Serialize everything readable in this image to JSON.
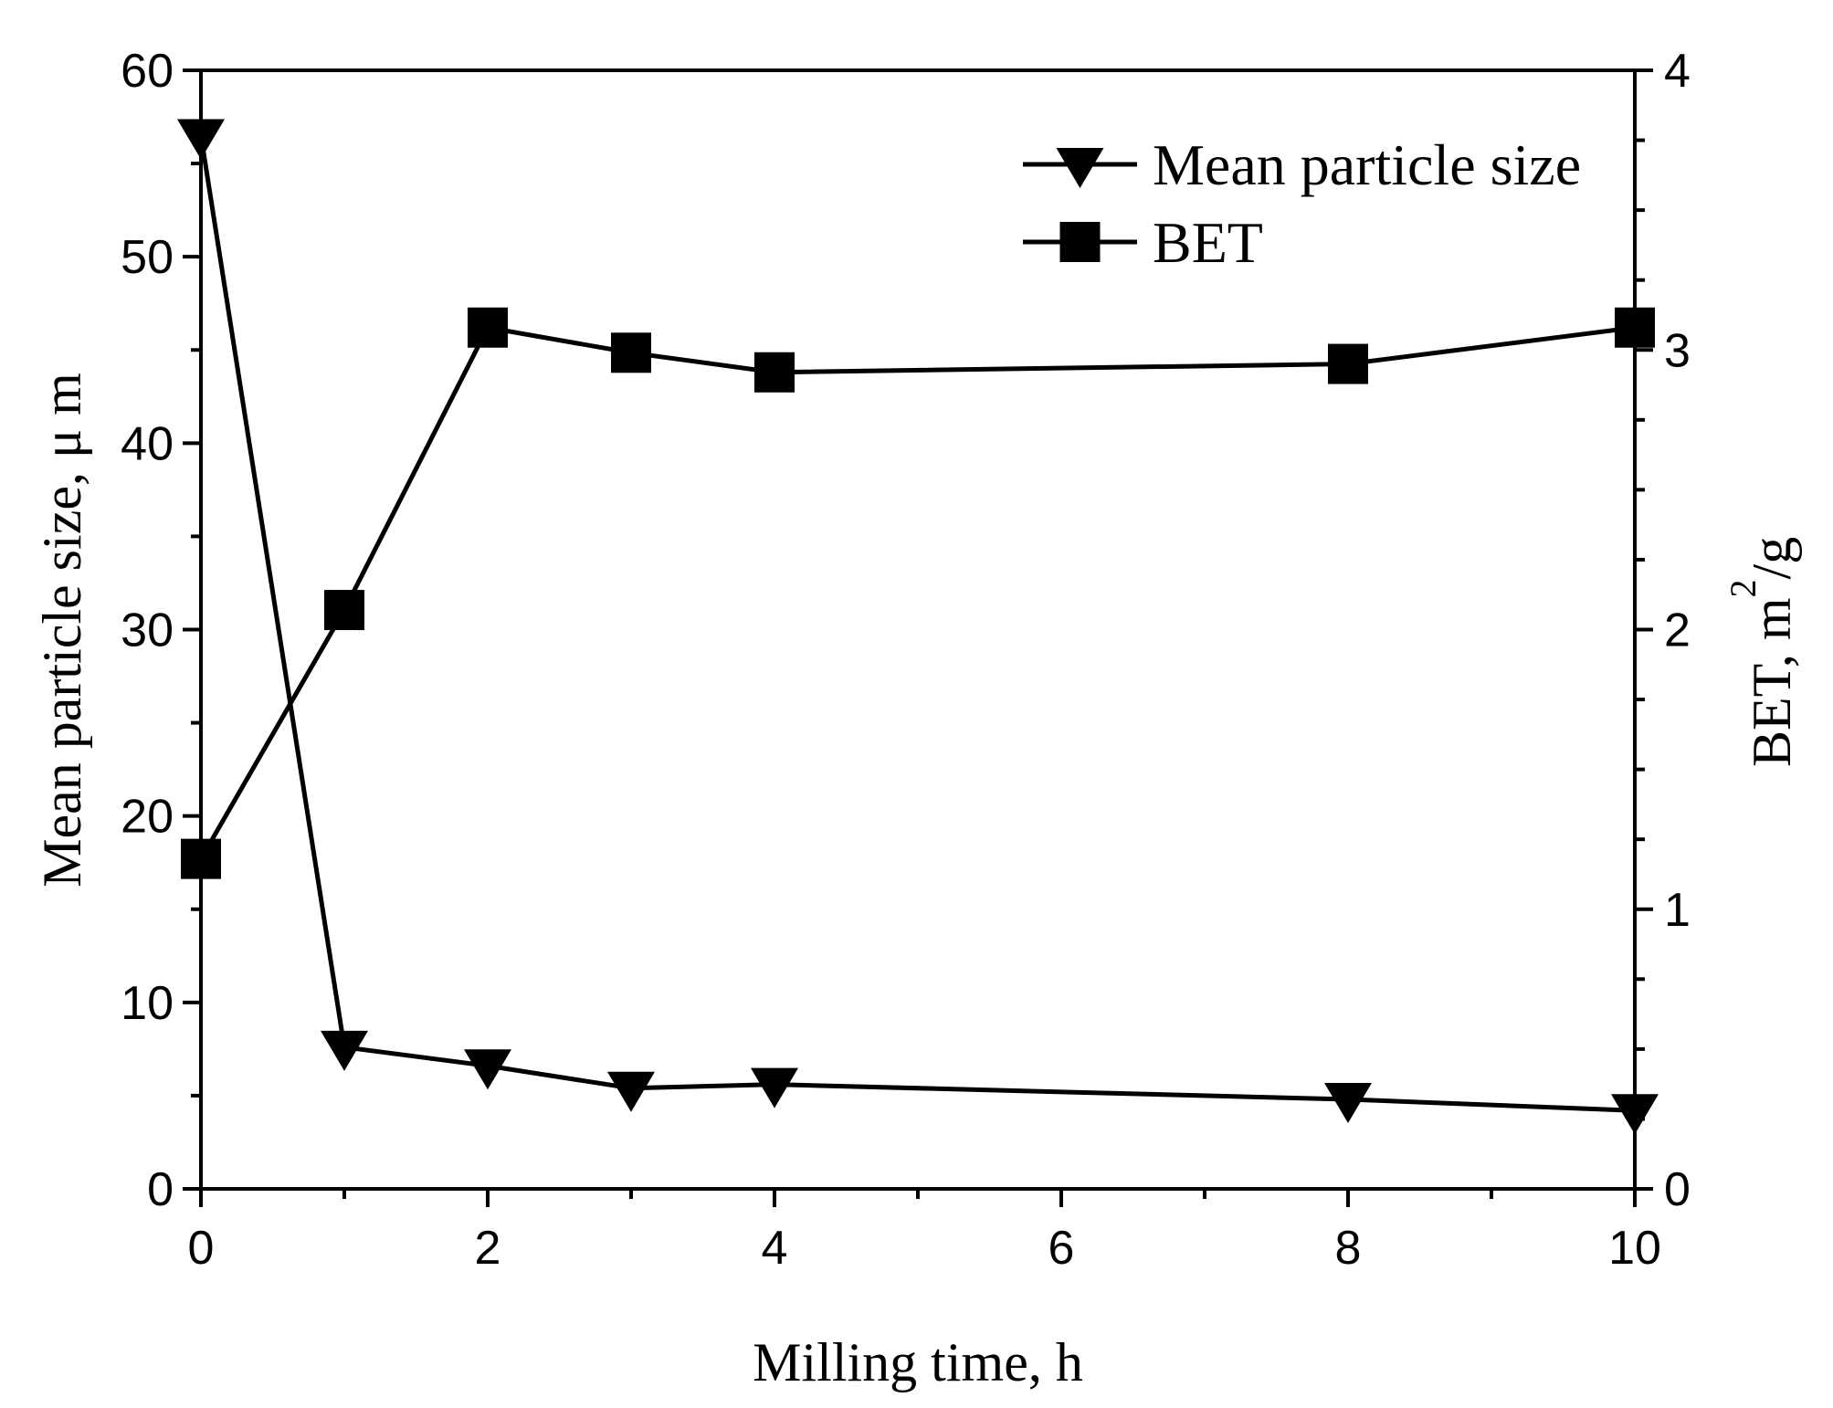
{
  "chart_data": {
    "type": "line",
    "xlabel": "Milling time,   h",
    "ylabel_left": "Mean particle size,   μ m",
    "ylabel_right_prefix": "BET,  m",
    "ylabel_right_sup": "2",
    "ylabel_right_suffix": "/g",
    "xlim": [
      0,
      10
    ],
    "ylim_left": [
      0,
      60
    ],
    "ylim_right": [
      0,
      4
    ],
    "x_ticks": [
      0,
      2,
      4,
      6,
      8,
      10
    ],
    "y_left_ticks": [
      0,
      10,
      20,
      30,
      40,
      50,
      60
    ],
    "y_right_ticks": [
      0,
      1,
      2,
      3,
      4
    ],
    "legend_position": "top-right",
    "series": [
      {
        "name": "Mean particle size",
        "axis": "left",
        "marker": "triangle-down",
        "x": [
          0,
          1,
          2,
          3,
          4,
          8,
          10
        ],
        "values": [
          56.5,
          7.6,
          6.6,
          5.4,
          5.6,
          4.8,
          4.2
        ]
      },
      {
        "name": "BET",
        "axis": "right",
        "marker": "square",
        "x": [
          0,
          1,
          2,
          3,
          4,
          8,
          10
        ],
        "values": [
          1.18,
          2.07,
          3.08,
          2.99,
          2.92,
          2.95,
          3.08
        ]
      }
    ]
  }
}
